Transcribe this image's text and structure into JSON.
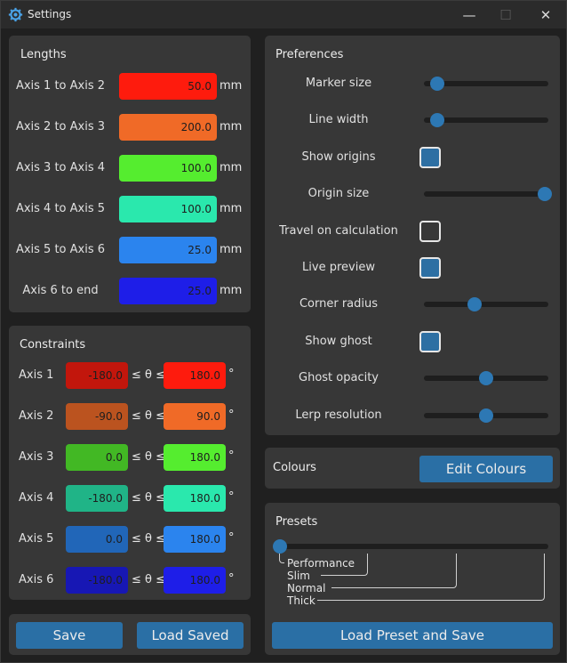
{
  "window": {
    "title": "Settings",
    "minimize_glyph": "—",
    "maximize_glyph": "☐",
    "close_glyph": "✕"
  },
  "lengths": {
    "title": "Lengths",
    "unit": "mm",
    "rows": [
      {
        "label": "Axis 1 to Axis 2",
        "value": "50.0",
        "color": "#fe1b0d"
      },
      {
        "label": "Axis 2 to Axis 3",
        "value": "200.0",
        "color": "#f06a27"
      },
      {
        "label": "Axis 3 to Axis 4",
        "value": "100.0",
        "color": "#55ed2f"
      },
      {
        "label": "Axis 4 to Axis 5",
        "value": "100.0",
        "color": "#2ae8ad"
      },
      {
        "label": "Axis 5 to Axis 6",
        "value": "25.0",
        "color": "#2b84ee"
      },
      {
        "label": "Axis 6 to end",
        "value": "25.0",
        "color": "#1e1ee8"
      }
    ]
  },
  "constraints": {
    "title": "Constraints",
    "separator": "≤ θ ≤",
    "unit": "°",
    "rows": [
      {
        "label": "Axis 1",
        "min": "-180.0",
        "max": "180.0",
        "min_color": "#c2160c",
        "max_color": "#fe1b0d"
      },
      {
        "label": "Axis 2",
        "min": "-90.0",
        "max": "90.0",
        "min_color": "#bb531f",
        "max_color": "#f06a27"
      },
      {
        "label": "Axis 3",
        "min": "0.0",
        "max": "180.0",
        "min_color": "#42b824",
        "max_color": "#55ed2f"
      },
      {
        "label": "Axis 4",
        "min": "-180.0",
        "max": "180.0",
        "min_color": "#20b487",
        "max_color": "#2ae8ad"
      },
      {
        "label": "Axis 5",
        "min": "0.0",
        "max": "180.0",
        "min_color": "#2166b8",
        "max_color": "#2b84ee"
      },
      {
        "label": "Axis 6",
        "min": "-180.0",
        "max": "180.0",
        "min_color": "#1717b4",
        "max_color": "#1e1ee8"
      }
    ]
  },
  "preferences": {
    "title": "Preferences",
    "items": [
      {
        "label": "Marker size",
        "type": "slider",
        "value": 0.08
      },
      {
        "label": "Line width",
        "type": "slider",
        "value": 0.08
      },
      {
        "label": "Show origins",
        "type": "checkbox",
        "checked": true
      },
      {
        "label": "Origin size",
        "type": "slider",
        "value": 1.0
      },
      {
        "label": "Travel on calculation",
        "type": "checkbox",
        "checked": false
      },
      {
        "label": "Live preview",
        "type": "checkbox",
        "checked": true
      },
      {
        "label": "Corner radius",
        "type": "slider",
        "value": 0.4
      },
      {
        "label": "Show ghost",
        "type": "checkbox",
        "checked": true
      },
      {
        "label": "Ghost opacity",
        "type": "slider",
        "value": 0.5
      },
      {
        "label": "Lerp resolution",
        "type": "slider",
        "value": 0.5
      }
    ]
  },
  "colours": {
    "label": "Colours",
    "button": "Edit Colours"
  },
  "presets": {
    "title": "Presets",
    "options": [
      "Performance",
      "Slim",
      "Normal",
      "Thick"
    ],
    "value": 0.0,
    "button": "Load Preset and Save"
  },
  "actions": {
    "save": "Save",
    "load_saved": "Load Saved"
  },
  "colors": {
    "accent": "#2a6fa5",
    "panel": "#373737",
    "background": "#202020"
  }
}
